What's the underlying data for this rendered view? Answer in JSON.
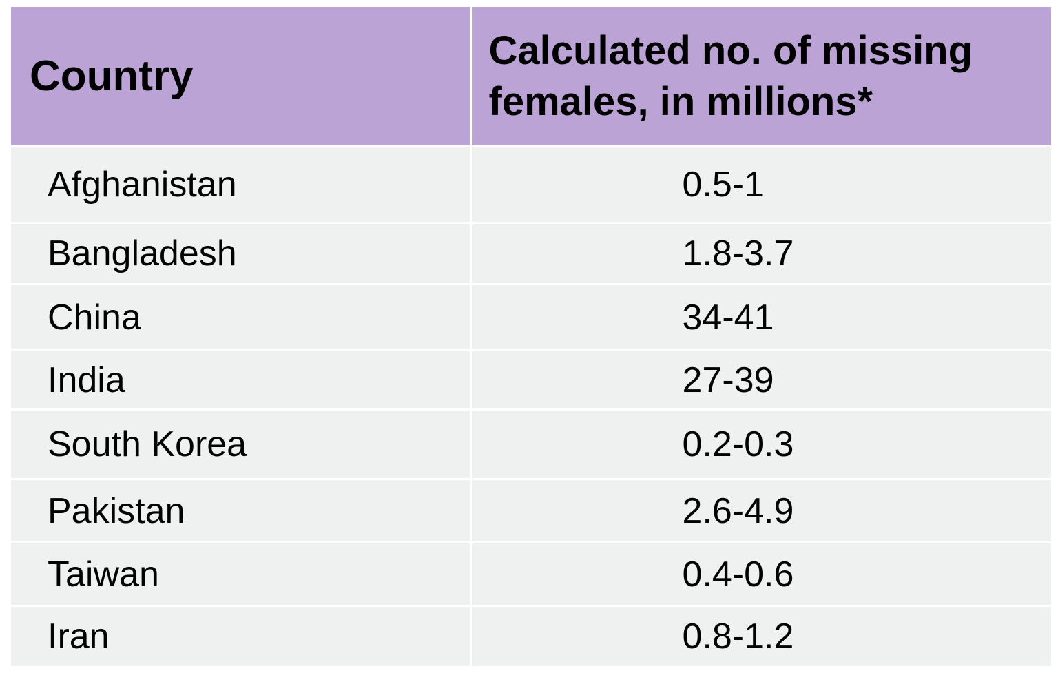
{
  "table": {
    "headers": {
      "country": "Country",
      "missing": "Calculated no. of missing females, in millions*"
    },
    "rows": [
      {
        "country": "Afghanistan",
        "value": "0.5-1"
      },
      {
        "country": "Bangladesh",
        "value": "1.8-3.7"
      },
      {
        "country": "China",
        "value": "34-41"
      },
      {
        "country": "India",
        "value": "27-39"
      },
      {
        "country": "South Korea",
        "value": "0.2-0.3"
      },
      {
        "country": "Pakistan",
        "value": "2.6-4.9"
      },
      {
        "country": "Taiwan",
        "value": "0.4-0.6"
      },
      {
        "country": "Iran",
        "value": "0.8-1.2"
      }
    ]
  },
  "colors": {
    "header_bg": "#bca3d6",
    "row_bg": "#eff1f0",
    "divider": "#ffffff"
  }
}
